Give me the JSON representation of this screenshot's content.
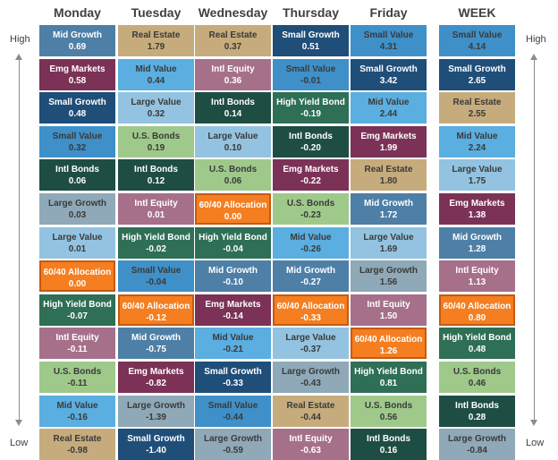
{
  "chart_data": {
    "type": "table",
    "labels": {
      "high": "High",
      "low": "Low"
    },
    "columns": [
      {
        "name": "Monday",
        "cells": [
          {
            "asset": "Mid Growth",
            "value": "0.69"
          },
          {
            "asset": "Emg Markets",
            "value": "0.58"
          },
          {
            "asset": "Small Growth",
            "value": "0.48"
          },
          {
            "asset": "Small Value",
            "value": "0.32"
          },
          {
            "asset": "Intl Bonds",
            "value": "0.06"
          },
          {
            "asset": "Large Growth",
            "value": "0.03"
          },
          {
            "asset": "Large Value",
            "value": "0.01"
          },
          {
            "asset": "60/40 Allocation",
            "value": "0.00"
          },
          {
            "asset": "High Yield Bond",
            "value": "-0.07"
          },
          {
            "asset": "Intl Equity",
            "value": "-0.11"
          },
          {
            "asset": "U.S. Bonds",
            "value": "-0.11"
          },
          {
            "asset": "Mid Value",
            "value": "-0.16"
          },
          {
            "asset": "Real Estate",
            "value": "-0.98"
          }
        ]
      },
      {
        "name": "Tuesday",
        "cells": [
          {
            "asset": "Real Estate",
            "value": "1.79"
          },
          {
            "asset": "Mid Value",
            "value": "0.44"
          },
          {
            "asset": "Large Value",
            "value": "0.32"
          },
          {
            "asset": "U.S. Bonds",
            "value": "0.19"
          },
          {
            "asset": "Intl Bonds",
            "value": "0.12"
          },
          {
            "asset": "Intl Equity",
            "value": "0.01"
          },
          {
            "asset": "High Yield Bond",
            "value": "-0.02"
          },
          {
            "asset": "Small Value",
            "value": "-0.04"
          },
          {
            "asset": "60/40 Allocation",
            "value": "-0.12"
          },
          {
            "asset": "Mid Growth",
            "value": "-0.75"
          },
          {
            "asset": "Emg Markets",
            "value": "-0.82"
          },
          {
            "asset": "Large Growth",
            "value": "-1.39"
          },
          {
            "asset": "Small Growth",
            "value": "-1.40"
          }
        ]
      },
      {
        "name": "Wednesday",
        "cells": [
          {
            "asset": "Real Estate",
            "value": "0.37"
          },
          {
            "asset": "Intl Equity",
            "value": "0.36"
          },
          {
            "asset": "Intl Bonds",
            "value": "0.14"
          },
          {
            "asset": "Large Value",
            "value": "0.10"
          },
          {
            "asset": "U.S. Bonds",
            "value": "0.06"
          },
          {
            "asset": "60/40 Allocation",
            "value": "0.00"
          },
          {
            "asset": "High Yield Bond",
            "value": "-0.04"
          },
          {
            "asset": "Mid Growth",
            "value": "-0.10"
          },
          {
            "asset": "Emg Markets",
            "value": "-0.14"
          },
          {
            "asset": "Mid Value",
            "value": "-0.21"
          },
          {
            "asset": "Small Growth",
            "value": "-0.33"
          },
          {
            "asset": "Small Value",
            "value": "-0.44"
          },
          {
            "asset": "Large Growth",
            "value": "-0.59"
          }
        ]
      },
      {
        "name": "Thursday",
        "cells": [
          {
            "asset": "Small Growth",
            "value": "0.51"
          },
          {
            "asset": "Small Value",
            "value": "-0.01"
          },
          {
            "asset": "High Yield Bond",
            "value": "-0.19"
          },
          {
            "asset": "Intl Bonds",
            "value": "-0.20"
          },
          {
            "asset": "Emg Markets",
            "value": "-0.22"
          },
          {
            "asset": "U.S. Bonds",
            "value": "-0.23"
          },
          {
            "asset": "Mid Value",
            "value": "-0.26"
          },
          {
            "asset": "Mid Growth",
            "value": "-0.27"
          },
          {
            "asset": "60/40 Allocation",
            "value": "-0.33"
          },
          {
            "asset": "Large Value",
            "value": "-0.37"
          },
          {
            "asset": "Large Growth",
            "value": "-0.43"
          },
          {
            "asset": "Real Estate",
            "value": "-0.44"
          },
          {
            "asset": "Intl Equity",
            "value": "-0.63"
          }
        ]
      },
      {
        "name": "Friday",
        "cells": [
          {
            "asset": "Small Value",
            "value": "4.31"
          },
          {
            "asset": "Small Growth",
            "value": "3.42"
          },
          {
            "asset": "Mid Value",
            "value": "2.44"
          },
          {
            "asset": "Emg Markets",
            "value": "1.99"
          },
          {
            "asset": "Real Estate",
            "value": "1.80"
          },
          {
            "asset": "Mid Growth",
            "value": "1.72"
          },
          {
            "asset": "Large Value",
            "value": "1.69"
          },
          {
            "asset": "Large Growth",
            "value": "1.56"
          },
          {
            "asset": "Intl Equity",
            "value": "1.50"
          },
          {
            "asset": "60/40 Allocation",
            "value": "1.26"
          },
          {
            "asset": "High Yield Bond",
            "value": "0.81"
          },
          {
            "asset": "U.S. Bonds",
            "value": "0.56"
          },
          {
            "asset": "Intl Bonds",
            "value": "0.16"
          }
        ]
      },
      {
        "name": "WEEK",
        "cells": [
          {
            "asset": "Small Value",
            "value": "4.14"
          },
          {
            "asset": "Small Growth",
            "value": "2.65"
          },
          {
            "asset": "Real Estate",
            "value": "2.55"
          },
          {
            "asset": "Mid Value",
            "value": "2.24"
          },
          {
            "asset": "Large Value",
            "value": "1.75"
          },
          {
            "asset": "Emg Markets",
            "value": "1.38"
          },
          {
            "asset": "Mid Growth",
            "value": "1.28"
          },
          {
            "asset": "Intl Equity",
            "value": "1.13"
          },
          {
            "asset": "60/40 Allocation",
            "value": "0.80"
          },
          {
            "asset": "High Yield Bond",
            "value": "0.48"
          },
          {
            "asset": "U.S. Bonds",
            "value": "0.46"
          },
          {
            "asset": "Intl Bonds",
            "value": "0.28"
          },
          {
            "asset": "Large Growth",
            "value": "-0.84"
          }
        ]
      }
    ],
    "asset_colors": {
      "Mid Growth": "#4e7fa6",
      "Emg Markets": "#7b3256",
      "Small Growth": "#1f4e79",
      "Small Value": "#3f90c8",
      "Intl Bonds": "#1e4d44",
      "Large Growth": "#8fa9b8",
      "Large Value": "#93c3e0",
      "60/40 Allocation": "#f47e20",
      "High Yield Bond": "#2e6f56",
      "Intl Equity": "#a6708a",
      "U.S. Bonds": "#9fc98b",
      "Mid Value": "#5aaee0",
      "Real Estate": "#c6ac7c"
    },
    "highlight_asset": "60/40 Allocation",
    "text_colors": {
      "light": "#ffffff",
      "dark": "#3a3a3a"
    },
    "dark_text_assets": [
      "Large Value",
      "Large Growth",
      "U.S. Bonds",
      "Real Estate",
      "Mid Value",
      "Small Value"
    ]
  }
}
